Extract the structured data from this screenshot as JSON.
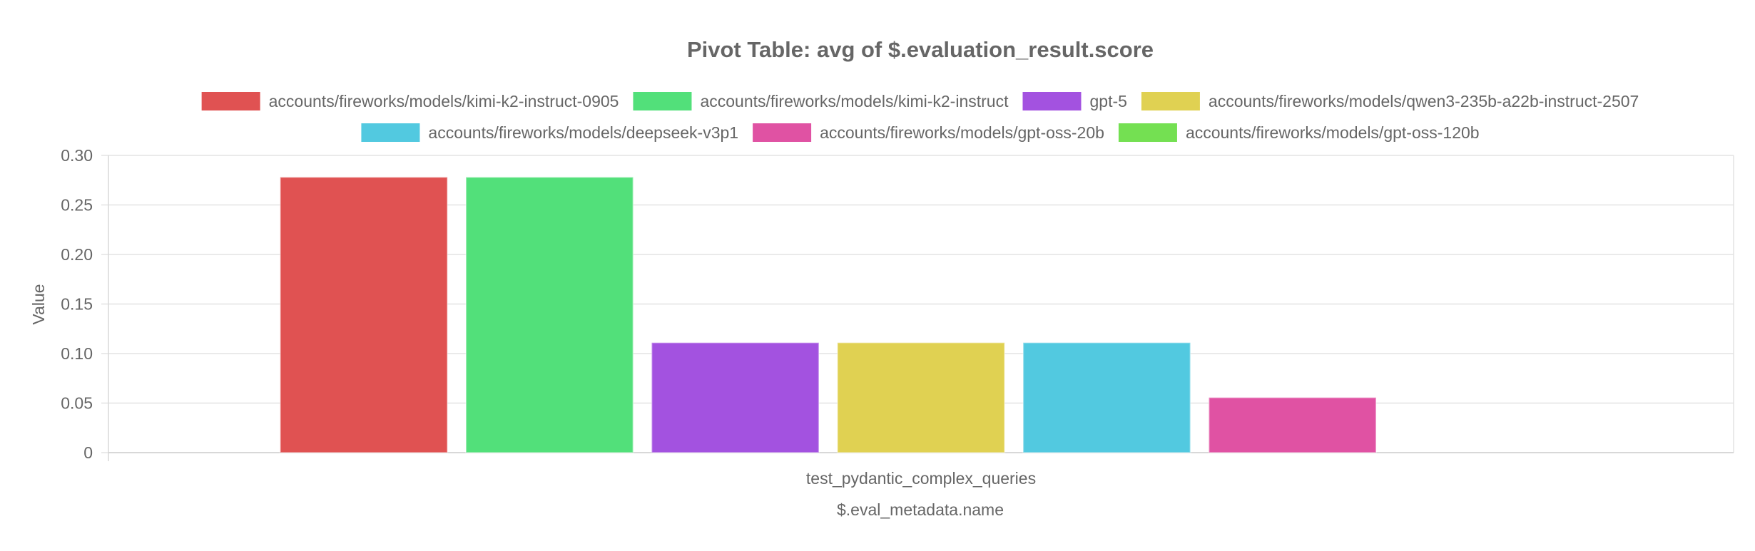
{
  "chart_data": {
    "type": "bar",
    "title": "Pivot Table: avg of $.evaluation_result.score",
    "xlabel": "$.eval_metadata.name",
    "ylabel": "Value",
    "categories": [
      "test_pydantic_complex_queries"
    ],
    "ylim": [
      0,
      0.3
    ],
    "yticks": [
      "0",
      "0.05",
      "0.10",
      "0.15",
      "0.20",
      "0.25",
      "0.30"
    ],
    "grid": true,
    "legend_position": "top",
    "series": [
      {
        "name": "accounts/fireworks/models/kimi-k2-instruct-0905",
        "values": [
          0.278
        ],
        "color": "#e05252"
      },
      {
        "name": "accounts/fireworks/models/kimi-k2-instruct",
        "values": [
          0.278
        ],
        "color": "#52e07a"
      },
      {
        "name": "gpt-5",
        "values": [
          0.111
        ],
        "color": "#a352e0"
      },
      {
        "name": "accounts/fireworks/models/qwen3-235b-a22b-instruct-2507",
        "values": [
          0.111
        ],
        "color": "#e0d152"
      },
      {
        "name": "accounts/fireworks/models/deepseek-v3p1",
        "values": [
          0.111
        ],
        "color": "#52c9e0"
      },
      {
        "name": "accounts/fireworks/models/gpt-oss-20b",
        "values": [
          0.0556
        ],
        "color": "#e052a3"
      },
      {
        "name": "accounts/fireworks/models/gpt-oss-120b",
        "values": [
          0
        ],
        "color": "#74e052"
      }
    ]
  }
}
